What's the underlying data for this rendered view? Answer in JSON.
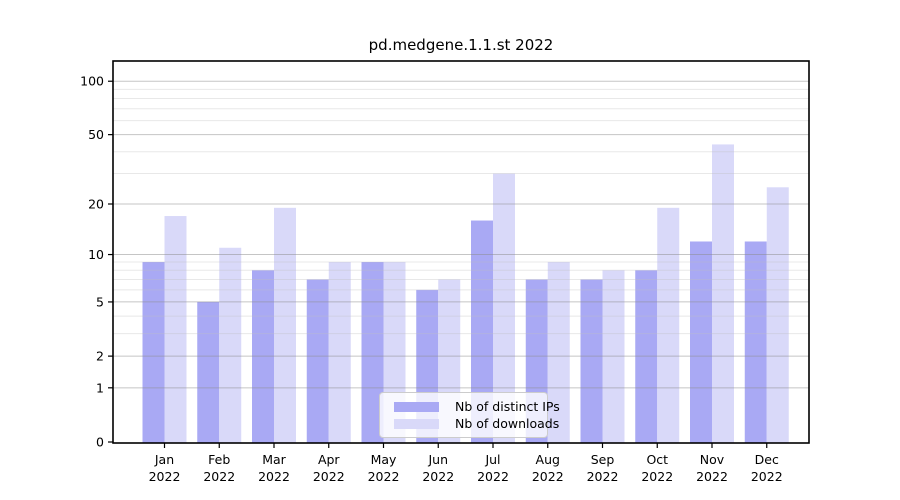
{
  "title": "pd.medgene.1.1.st 2022",
  "chart_data": {
    "type": "bar",
    "title": "pd.medgene.1.1.st 2022",
    "categories": [
      "Jan",
      "Feb",
      "Mar",
      "Apr",
      "May",
      "Jun",
      "Jul",
      "Aug",
      "Sep",
      "Oct",
      "Nov",
      "Dec"
    ],
    "category_year": "2022",
    "series": [
      {
        "name": "Nb of distinct IPs",
        "color": "#a9a9f4",
        "values": [
          9,
          5,
          8,
          7,
          9,
          6,
          16,
          7,
          7,
          8,
          12,
          12
        ]
      },
      {
        "name": "Nb of downloads",
        "color": "#d9d9f9",
        "values": [
          17,
          11,
          19,
          9,
          9,
          7,
          30,
          9,
          8,
          19,
          44,
          25
        ]
      }
    ],
    "xlabel": "",
    "ylabel": "",
    "yscale": "log1p",
    "ylim": [
      0,
      130
    ],
    "yticks": [
      0,
      1,
      2,
      5,
      10,
      20,
      50,
      100
    ],
    "minor_yticks": [
      3,
      4,
      6,
      7,
      8,
      9,
      30,
      40,
      60,
      70,
      80,
      90
    ],
    "grid": true,
    "legend_position": "lower center"
  },
  "legend": {
    "items": [
      {
        "label": "Nb of distinct IPs"
      },
      {
        "label": "Nb of downloads"
      }
    ]
  },
  "colors": {
    "ips_bar": "#a9a9f4",
    "downloads_bar": "#d9d9f9",
    "grid_major": "#8c8c8c",
    "grid_minor": "#bfbfbf",
    "spine": "#000000",
    "text": "#000000",
    "background": "#ffffff"
  }
}
